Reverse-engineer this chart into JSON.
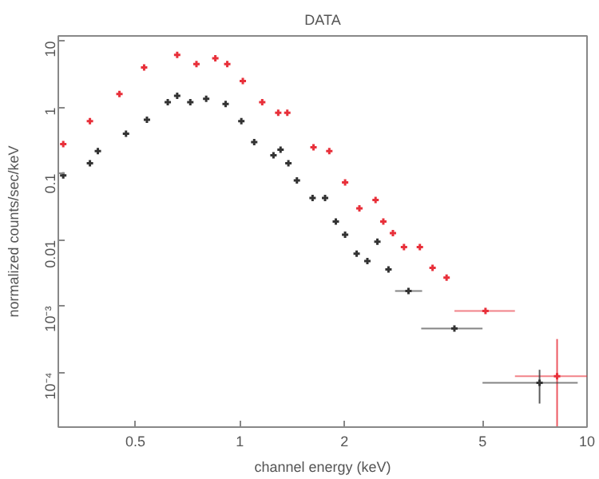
{
  "chart_data": {
    "type": "scatter",
    "title": "DATA",
    "xlabel": "channel energy (keV)",
    "ylabel": "normalized counts/sec/keV",
    "log": "xy",
    "grid": false,
    "marker": "cross",
    "xlim": [
      0.3,
      10
    ],
    "xticks": [
      0.5,
      1,
      2,
      5,
      10
    ],
    "ylim": [
      1.5e-05,
      12
    ],
    "yticks": [
      10,
      1,
      0.1,
      0.01,
      {
        "value": 0.001,
        "label": "10⁻³"
      },
      {
        "value": 0.0001,
        "label": "10⁻⁴"
      }
    ],
    "series": [
      {
        "color": "#e8303a",
        "x": [
          0.31,
          0.37,
          0.45,
          0.53,
          0.66,
          0.75,
          0.85,
          0.92,
          1.02,
          1.16,
          1.29,
          1.37,
          1.63,
          1.81,
          2.01,
          2.21,
          2.46,
          2.59,
          2.76,
          2.97,
          3.3,
          3.59,
          3.94,
          5.1,
          8.2
        ],
        "values": [
          0.28,
          0.62,
          1.6,
          4.0,
          6.2,
          4.5,
          5.5,
          4.5,
          2.5,
          1.2,
          0.83,
          0.83,
          0.25,
          0.22,
          0.074,
          0.03,
          0.04,
          0.019,
          0.0127,
          0.0078,
          0.0078,
          0.0038,
          0.0027,
          0.00085,
          8.8e-05
        ],
        "xerrors": [
          null,
          null,
          null,
          null,
          null,
          null,
          null,
          null,
          null,
          null,
          null,
          null,
          null,
          null,
          null,
          null,
          null,
          null,
          null,
          null,
          null,
          null,
          null,
          [
            4.15,
            6.2
          ],
          [
            6.2,
            10
          ]
        ],
        "errors": [
          null,
          null,
          null,
          null,
          null,
          null,
          null,
          null,
          null,
          null,
          null,
          null,
          null,
          null,
          null,
          null,
          null,
          null,
          null,
          null,
          null,
          null,
          null,
          null,
          [
            1.5e-05,
            0.00032
          ]
        ]
      },
      {
        "color": "#333333",
        "x": [
          0.31,
          0.37,
          0.39,
          0.47,
          0.54,
          0.62,
          0.66,
          0.72,
          0.8,
          0.91,
          1.01,
          1.1,
          1.25,
          1.31,
          1.38,
          1.46,
          1.62,
          1.76,
          1.89,
          2.01,
          2.17,
          2.33,
          2.49,
          2.68,
          3.06,
          4.15,
          7.3
        ],
        "values": [
          0.094,
          0.144,
          0.22,
          0.4,
          0.65,
          1.2,
          1.5,
          1.2,
          1.35,
          1.13,
          0.62,
          0.3,
          0.19,
          0.23,
          0.144,
          0.079,
          0.043,
          0.043,
          0.019,
          0.012,
          0.0062,
          0.0048,
          0.0094,
          0.0036,
          0.0017,
          0.00046,
          7e-05
        ],
        "xerrors": [
          null,
          null,
          null,
          null,
          null,
          null,
          null,
          null,
          null,
          null,
          null,
          null,
          null,
          null,
          null,
          null,
          null,
          null,
          null,
          null,
          null,
          null,
          null,
          null,
          [
            2.8,
            3.35
          ],
          [
            3.33,
            5.0
          ],
          [
            5.0,
            9.4
          ]
        ],
        "errors": [
          null,
          null,
          null,
          null,
          null,
          null,
          null,
          null,
          null,
          null,
          null,
          null,
          null,
          null,
          null,
          null,
          null,
          null,
          null,
          null,
          null,
          null,
          null,
          null,
          null,
          null,
          [
            3.4e-05,
            0.00011
          ]
        ]
      }
    ]
  }
}
